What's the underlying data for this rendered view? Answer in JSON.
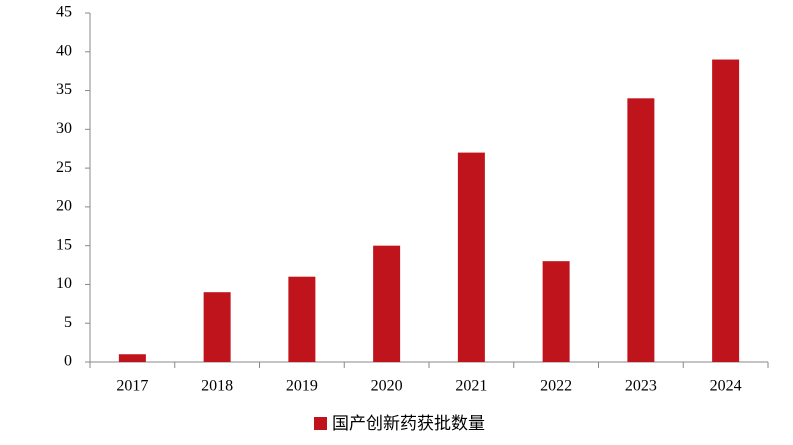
{
  "chart_data": {
    "type": "bar",
    "categories": [
      "2017",
      "2018",
      "2019",
      "2020",
      "2021",
      "2022",
      "2023",
      "2024"
    ],
    "series": [
      {
        "name": "国产创新药获批数量",
        "color": "#c0141c",
        "values": [
          1,
          9,
          11,
          15,
          27,
          13,
          34,
          39
        ]
      }
    ],
    "ylim": [
      0,
      45
    ],
    "yticks": [
      0,
      5,
      10,
      15,
      20,
      25,
      30,
      35,
      40,
      45
    ],
    "grid": false,
    "legend": "bottom"
  }
}
